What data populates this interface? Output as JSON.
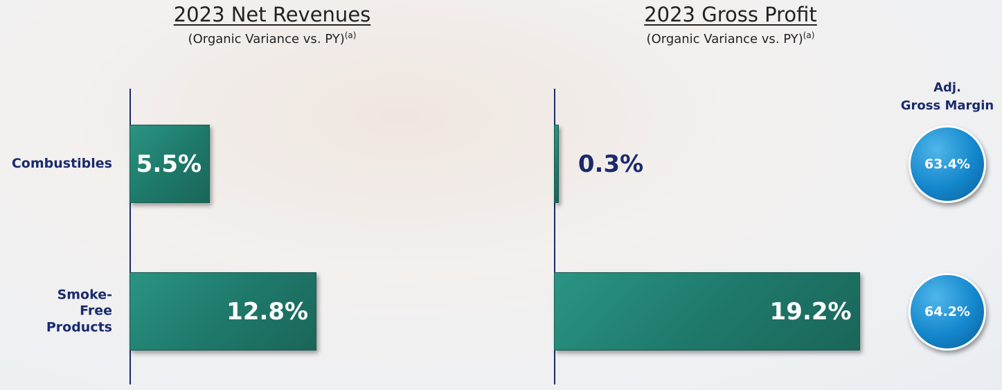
{
  "chart_data": [
    {
      "type": "bar",
      "orientation": "horizontal",
      "title": "2023 Net Revenues",
      "subtitle": "(Organic Variance vs. PY)",
      "footnote_marker": "(a)",
      "categories": [
        "Combustibles",
        "Smoke-Free Products"
      ],
      "values": [
        5.5,
        12.8
      ],
      "value_labels": [
        "5.5%",
        "12.8%"
      ],
      "color": "#1f7a6c",
      "xlim": [
        0,
        20
      ]
    },
    {
      "type": "bar",
      "orientation": "horizontal",
      "title": "2023 Gross Profit",
      "subtitle": "(Organic Variance vs. PY)",
      "footnote_marker": "(a)",
      "values": [
        0.3,
        19.2
      ],
      "value_labels": [
        "0.3%",
        "19.2%"
      ],
      "color": "#1f7a6c",
      "xlim": [
        0,
        20
      ],
      "margin_title": [
        "Adj.",
        "Gross Margin"
      ],
      "margin_values": [
        63.4,
        64.2
      ],
      "margin_value_labels": [
        "63.4%",
        "64.2%"
      ]
    }
  ]
}
